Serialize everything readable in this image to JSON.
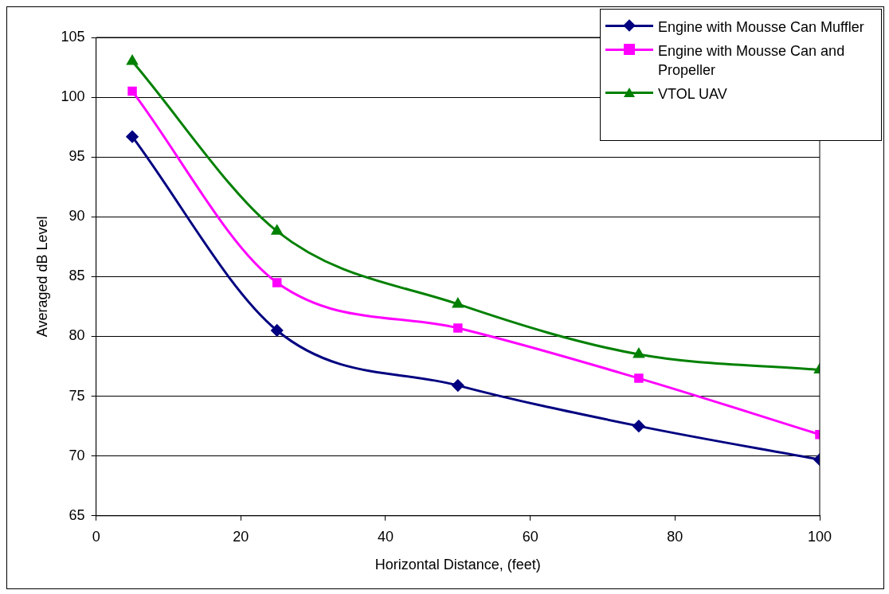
{
  "chart_data": {
    "type": "line",
    "xlabel": "Horizontal Distance, (feet)",
    "ylabel": "Averaged dB Level",
    "x": [
      5,
      25,
      50,
      75,
      100
    ],
    "series": [
      {
        "name": "Engine with Mousse Can Muffler",
        "color": "#000080",
        "marker": "diamond",
        "values": [
          96.7,
          80.5,
          75.9,
          72.5,
          69.7
        ]
      },
      {
        "name": "Engine with Mousse Can and Propeller",
        "color": "#ff00ff",
        "marker": "square",
        "values": [
          100.5,
          84.5,
          80.7,
          76.5,
          71.8
        ]
      },
      {
        "name": "VTOL UAV",
        "color": "#008000",
        "marker": "triangle",
        "values": [
          103,
          88.8,
          82.7,
          78.5,
          77.2
        ]
      }
    ],
    "xlim": [
      0,
      100
    ],
    "xticks": [
      0,
      20,
      40,
      60,
      80,
      100
    ],
    "ylim": [
      65,
      105
    ],
    "yticks": [
      65,
      70,
      75,
      80,
      85,
      90,
      95,
      100,
      105
    ],
    "grid": "y",
    "legend": "top right",
    "line_style": "solid"
  }
}
